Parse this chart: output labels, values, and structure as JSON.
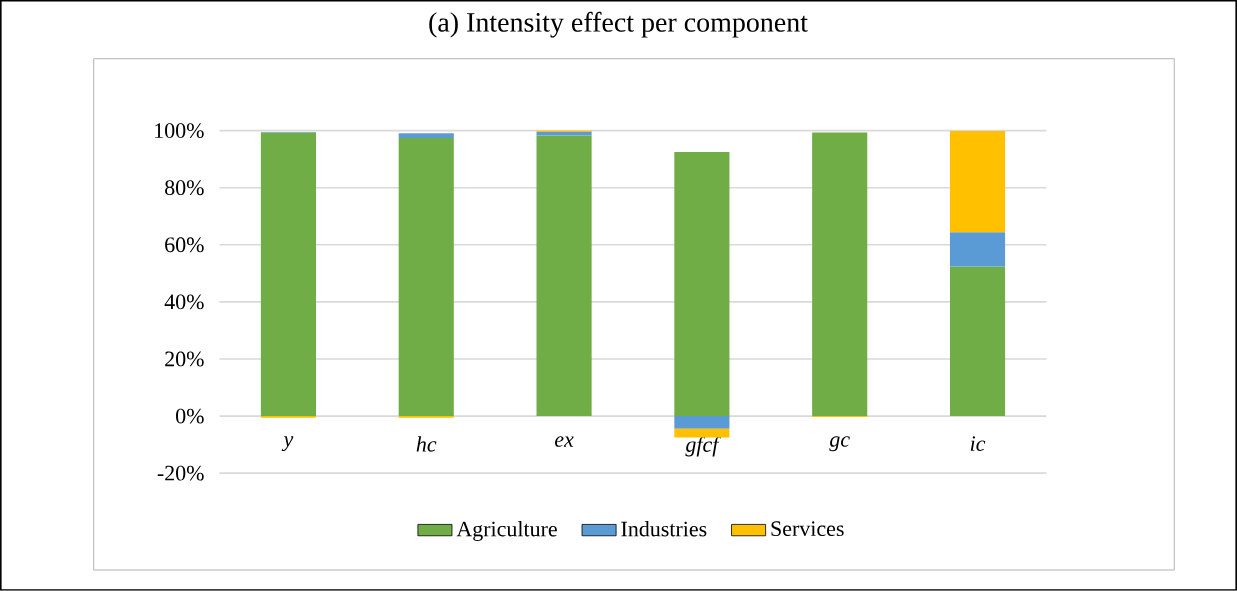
{
  "chart_data": {
    "type": "bar",
    "title": "(a)  Intensity effect per component",
    "categories": [
      "y",
      "hc",
      "ex",
      "gfcf",
      "gc",
      "ic"
    ],
    "stacked": true,
    "series": [
      {
        "name": "Agriculture",
        "color": "#70ad47",
        "values": [
          99.3,
          97.4,
          98.3,
          92.5,
          99.3,
          52.4
        ]
      },
      {
        "name": "Industries",
        "color": "#5b9bd5",
        "values": [
          0.2,
          1.7,
          1.2,
          -4.4,
          0,
          12.0
        ]
      },
      {
        "name": "Services",
        "color": "#ffc000",
        "values": [
          -0.6,
          -0.6,
          0.5,
          -3.1,
          -0.3,
          35.5
        ]
      }
    ],
    "ylim": [
      -20,
      100
    ],
    "yticks": [
      {
        "value": -20,
        "label": "-20%"
      },
      {
        "value": 0,
        "label": "0%"
      },
      {
        "value": 20,
        "label": "20%"
      },
      {
        "value": 40,
        "label": "40%"
      },
      {
        "value": 60,
        "label": "60%"
      },
      {
        "value": 80,
        "label": "80%"
      },
      {
        "value": 100,
        "label": "100%"
      }
    ],
    "grid": "y",
    "legend": "bottom"
  }
}
